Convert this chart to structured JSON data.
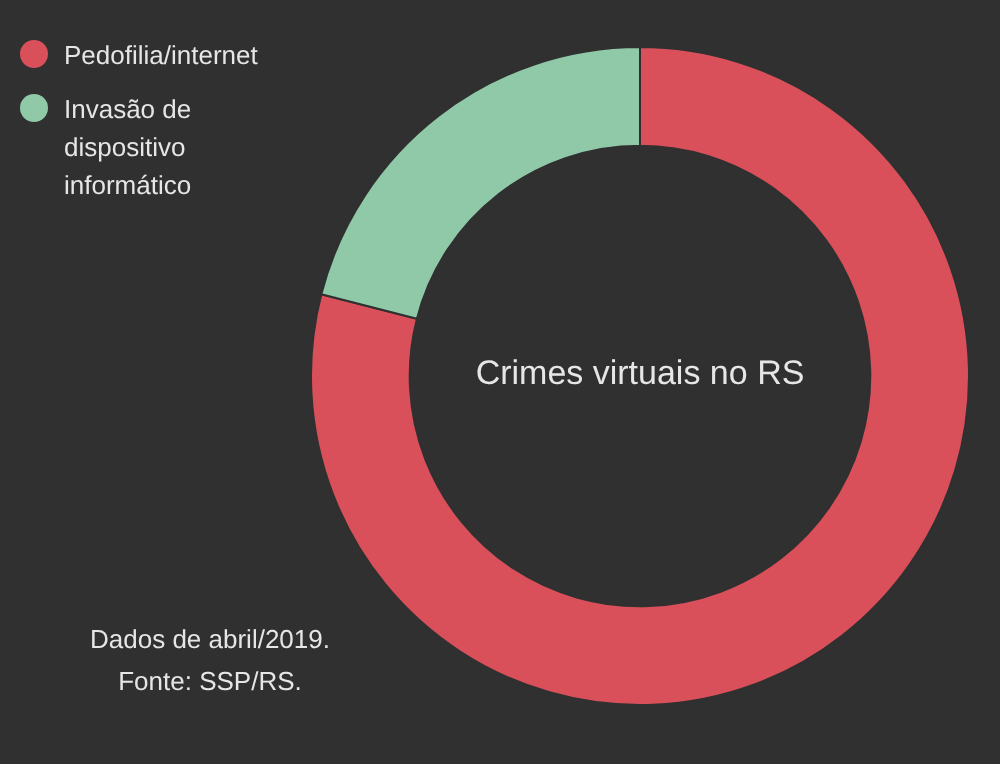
{
  "chart_data": {
    "type": "donut",
    "title": "Crimes virtuais no RS",
    "categories": [
      "Pedofilia/internet",
      "Invasão de dispositivo informático"
    ],
    "values": [
      79,
      21
    ],
    "colors": [
      "#d9505a",
      "#8fc9a8"
    ],
    "legend": "top left",
    "annotations": [
      "Dados de abril/2019.",
      "Fonte: SSP/RS."
    ]
  }
}
